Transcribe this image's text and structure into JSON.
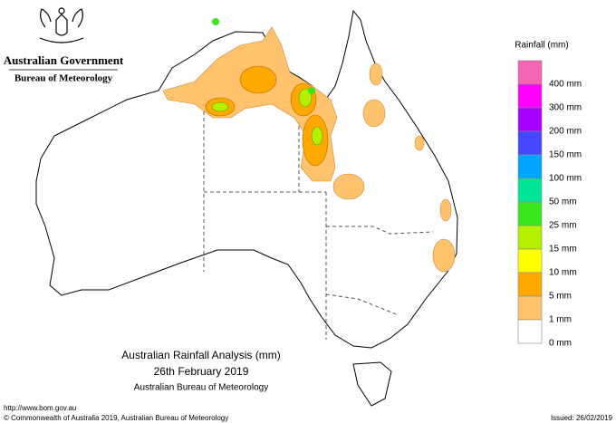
{
  "header": {
    "government": "Australian Government",
    "agency": "Bureau of Meteorology"
  },
  "title": {
    "line1": "Australian Rainfall Analysis (mm)",
    "line2": "26th February 2019",
    "line3": "Australian Bureau of Meteorology"
  },
  "legend": {
    "title": "Rainfall (mm)",
    "colors": [
      "#f565b4",
      "#ff00ff",
      "#a600ff",
      "#4646ff",
      "#00a5ff",
      "#00e696",
      "#3ce61e",
      "#b4f000",
      "#ffff00",
      "#ffa800",
      "#ffc36e",
      "#ffffff"
    ],
    "labels": [
      "400 mm",
      "300 mm",
      "200 mm",
      "150 mm",
      "100 mm",
      "50 mm",
      "25 mm",
      "15 mm",
      "10 mm",
      "5 mm",
      "1 mm",
      "0 mm"
    ]
  },
  "footer": {
    "url": "http://www.bom.gov.au",
    "copyright": "© Commonwealth of Australia 2019, Australian Bureau of Meteorology",
    "issued": "Issued: 26/02/2019"
  }
}
